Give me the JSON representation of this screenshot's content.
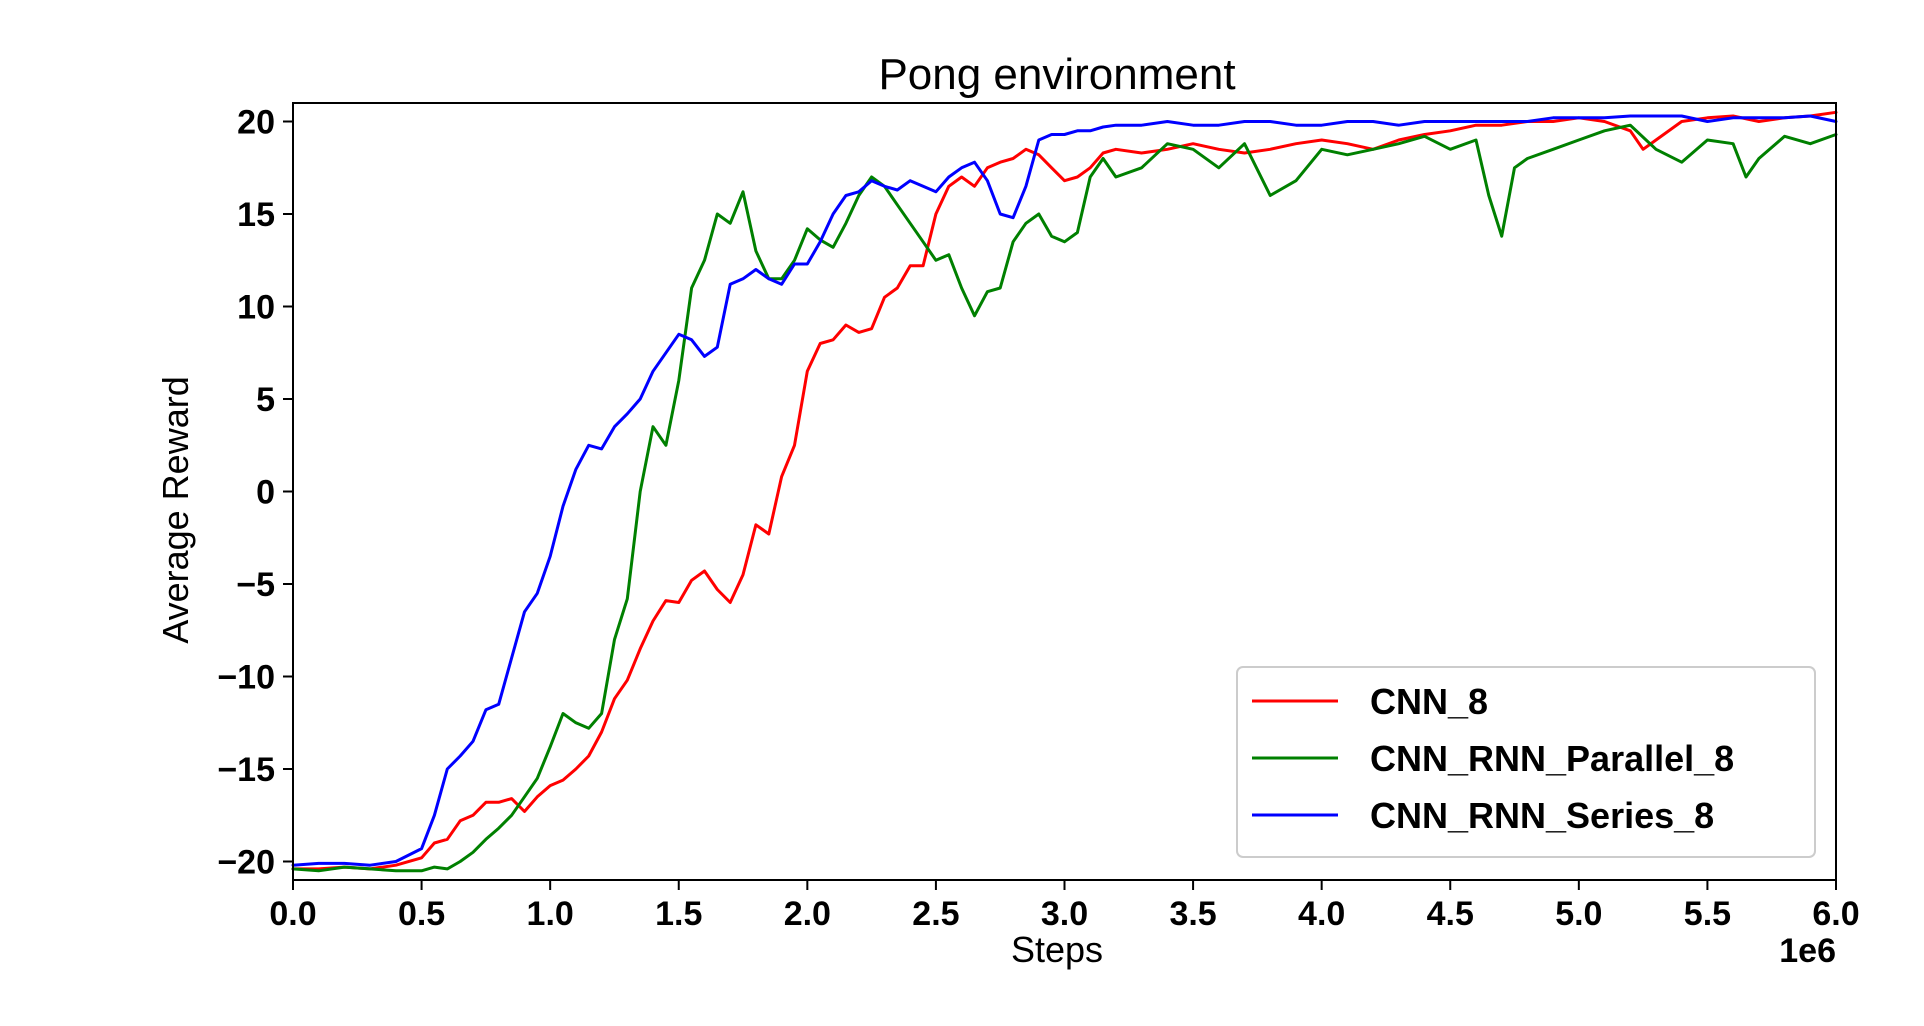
{
  "chart_data": {
    "type": "line",
    "title": "Pong environment",
    "xlabel": "Steps",
    "ylabel": "Average Reward",
    "x_offset_label": "1e6",
    "xlim": [
      0,
      6.0
    ],
    "ylim": [
      -21,
      21
    ],
    "x_ticks": [
      0.0,
      0.5,
      1.0,
      1.5,
      2.0,
      2.5,
      3.0,
      3.5,
      4.0,
      4.5,
      5.0,
      5.5,
      6.0
    ],
    "x_tick_labels": [
      "0.0",
      "0.5",
      "1.0",
      "1.5",
      "2.0",
      "2.5",
      "3.0",
      "3.5",
      "4.0",
      "4.5",
      "5.0",
      "5.5",
      "6.0"
    ],
    "y_ticks": [
      -20,
      -15,
      -10,
      -5,
      0,
      5,
      10,
      15,
      20
    ],
    "y_tick_labels": [
      "−20",
      "−15",
      "−10",
      "−5",
      "0",
      "5",
      "10",
      "15",
      "20"
    ],
    "grid": false,
    "legend_position": "lower-right",
    "series": [
      {
        "name": "CNN_8",
        "color": "#ff0000",
        "x": [
          0.0,
          0.1,
          0.2,
          0.3,
          0.4,
          0.5,
          0.55,
          0.6,
          0.65,
          0.7,
          0.75,
          0.8,
          0.85,
          0.9,
          0.95,
          1.0,
          1.05,
          1.1,
          1.15,
          1.2,
          1.25,
          1.3,
          1.35,
          1.4,
          1.45,
          1.5,
          1.55,
          1.6,
          1.65,
          1.7,
          1.75,
          1.8,
          1.85,
          1.9,
          1.95,
          2.0,
          2.05,
          2.1,
          2.15,
          2.2,
          2.25,
          2.3,
          2.35,
          2.4,
          2.45,
          2.5,
          2.55,
          2.6,
          2.65,
          2.7,
          2.75,
          2.8,
          2.85,
          2.9,
          2.95,
          3.0,
          3.05,
          3.1,
          3.15,
          3.2,
          3.3,
          3.4,
          3.5,
          3.6,
          3.7,
          3.8,
          3.9,
          4.0,
          4.1,
          4.2,
          4.3,
          4.4,
          4.5,
          4.6,
          4.7,
          4.8,
          4.9,
          5.0,
          5.1,
          5.2,
          5.25,
          5.3,
          5.4,
          5.5,
          5.6,
          5.7,
          5.8,
          5.9,
          6.0
        ],
        "y": [
          -20.4,
          -20.4,
          -20.3,
          -20.4,
          -20.2,
          -19.8,
          -19.0,
          -18.8,
          -17.8,
          -17.5,
          -16.8,
          -16.8,
          -16.6,
          -17.3,
          -16.5,
          -15.9,
          -15.6,
          -15.0,
          -14.3,
          -13.0,
          -11.2,
          -10.2,
          -8.5,
          -7.0,
          -5.9,
          -6.0,
          -4.8,
          -4.3,
          -5.3,
          -6.0,
          -4.5,
          -1.8,
          -2.3,
          0.8,
          2.5,
          6.5,
          8.0,
          8.2,
          9.0,
          8.6,
          8.8,
          10.5,
          11.0,
          12.2,
          12.2,
          15.0,
          16.5,
          17.0,
          16.5,
          17.5,
          17.8,
          18.0,
          18.5,
          18.2,
          17.5,
          16.8,
          17.0,
          17.5,
          18.3,
          18.5,
          18.3,
          18.5,
          18.8,
          18.5,
          18.3,
          18.5,
          18.8,
          19.0,
          18.8,
          18.5,
          19.0,
          19.3,
          19.5,
          19.8,
          19.8,
          20.0,
          20.0,
          20.2,
          20.0,
          19.5,
          18.5,
          19.0,
          20.0,
          20.2,
          20.3,
          20.0,
          20.2,
          20.3,
          20.5
        ]
      },
      {
        "name": "CNN_RNN_Parallel_8",
        "color": "#008000",
        "x": [
          0.0,
          0.1,
          0.2,
          0.3,
          0.4,
          0.5,
          0.55,
          0.6,
          0.65,
          0.7,
          0.75,
          0.8,
          0.85,
          0.9,
          0.95,
          1.0,
          1.05,
          1.1,
          1.15,
          1.2,
          1.25,
          1.3,
          1.35,
          1.4,
          1.45,
          1.5,
          1.55,
          1.6,
          1.65,
          1.7,
          1.75,
          1.8,
          1.85,
          1.9,
          1.95,
          2.0,
          2.05,
          2.1,
          2.15,
          2.2,
          2.25,
          2.3,
          2.35,
          2.4,
          2.45,
          2.5,
          2.55,
          2.6,
          2.65,
          2.7,
          2.75,
          2.8,
          2.85,
          2.9,
          2.95,
          3.0,
          3.05,
          3.1,
          3.15,
          3.2,
          3.3,
          3.4,
          3.5,
          3.6,
          3.7,
          3.8,
          3.9,
          4.0,
          4.1,
          4.2,
          4.3,
          4.4,
          4.5,
          4.6,
          4.65,
          4.7,
          4.75,
          4.8,
          4.9,
          5.0,
          5.1,
          5.2,
          5.3,
          5.4,
          5.5,
          5.6,
          5.65,
          5.7,
          5.8,
          5.9,
          6.0
        ],
        "y": [
          -20.4,
          -20.5,
          -20.3,
          -20.4,
          -20.5,
          -20.5,
          -20.3,
          -20.4,
          -20.0,
          -19.5,
          -18.8,
          -18.2,
          -17.5,
          -16.5,
          -15.5,
          -13.8,
          -12.0,
          -12.5,
          -12.8,
          -12.0,
          -8.0,
          -5.8,
          0.0,
          3.5,
          2.5,
          6.0,
          11.0,
          12.5,
          15.0,
          14.5,
          16.2,
          13.0,
          11.5,
          11.5,
          12.5,
          14.2,
          13.6,
          13.2,
          14.5,
          16.0,
          17.0,
          16.5,
          15.5,
          14.5,
          13.5,
          12.5,
          12.8,
          11.0,
          9.5,
          10.8,
          11.0,
          13.5,
          14.5,
          15.0,
          13.8,
          13.5,
          14.0,
          17.0,
          18.0,
          17.0,
          17.5,
          18.8,
          18.5,
          17.5,
          18.8,
          16.0,
          16.8,
          18.5,
          18.2,
          18.5,
          18.8,
          19.2,
          18.5,
          19.0,
          16.0,
          13.8,
          17.5,
          18.0,
          18.5,
          19.0,
          19.5,
          19.8,
          18.5,
          17.8,
          19.0,
          18.8,
          17.0,
          18.0,
          19.2,
          18.8,
          19.3
        ]
      },
      {
        "name": "CNN_RNN_Series_8",
        "color": "#0000ff",
        "x": [
          0.0,
          0.1,
          0.2,
          0.3,
          0.4,
          0.5,
          0.55,
          0.6,
          0.65,
          0.7,
          0.75,
          0.8,
          0.85,
          0.9,
          0.95,
          1.0,
          1.05,
          1.1,
          1.15,
          1.2,
          1.25,
          1.3,
          1.35,
          1.4,
          1.45,
          1.5,
          1.55,
          1.6,
          1.65,
          1.7,
          1.75,
          1.8,
          1.85,
          1.9,
          1.95,
          2.0,
          2.05,
          2.1,
          2.15,
          2.2,
          2.25,
          2.3,
          2.35,
          2.4,
          2.45,
          2.5,
          2.55,
          2.6,
          2.65,
          2.7,
          2.75,
          2.8,
          2.85,
          2.9,
          2.95,
          3.0,
          3.05,
          3.1,
          3.15,
          3.2,
          3.3,
          3.4,
          3.5,
          3.6,
          3.7,
          3.8,
          3.9,
          4.0,
          4.1,
          4.2,
          4.3,
          4.4,
          4.5,
          4.6,
          4.7,
          4.8,
          4.9,
          5.0,
          5.1,
          5.2,
          5.3,
          5.4,
          5.5,
          5.6,
          5.7,
          5.8,
          5.9,
          6.0
        ],
        "y": [
          -20.2,
          -20.1,
          -20.1,
          -20.2,
          -20.0,
          -19.3,
          -17.5,
          -15.0,
          -14.3,
          -13.5,
          -11.8,
          -11.5,
          -9.0,
          -6.5,
          -5.5,
          -3.5,
          -0.8,
          1.2,
          2.5,
          2.3,
          3.5,
          4.2,
          5.0,
          6.5,
          7.5,
          8.5,
          8.2,
          7.3,
          7.8,
          11.2,
          11.5,
          12.0,
          11.5,
          11.2,
          12.3,
          12.3,
          13.5,
          15.0,
          16.0,
          16.2,
          16.8,
          16.5,
          16.3,
          16.8,
          16.5,
          16.2,
          17.0,
          17.5,
          17.8,
          16.8,
          15.0,
          14.8,
          16.5,
          19.0,
          19.3,
          19.3,
          19.5,
          19.5,
          19.7,
          19.8,
          19.8,
          20.0,
          19.8,
          19.8,
          20.0,
          20.0,
          19.8,
          19.8,
          20.0,
          20.0,
          19.8,
          20.0,
          20.0,
          20.0,
          20.0,
          20.0,
          20.2,
          20.2,
          20.2,
          20.3,
          20.3,
          20.3,
          20.0,
          20.2,
          20.2,
          20.2,
          20.3,
          20.0
        ]
      }
    ]
  }
}
